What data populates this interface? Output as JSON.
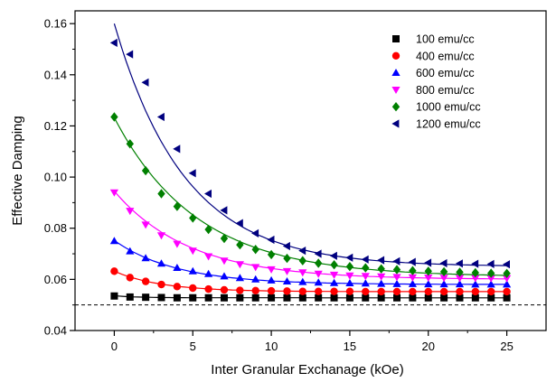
{
  "chart_data": {
    "type": "scatter",
    "title": "",
    "xlabel": "Inter Granular Exchanage (kOe)",
    "ylabel": "Effective Damping",
    "xlim": [
      -2.5,
      27.5
    ],
    "ylim": [
      0.04,
      0.165
    ],
    "xticks": [
      0,
      5,
      10,
      15,
      20,
      25
    ],
    "xtick_labels": [
      "0",
      "5",
      "10",
      "15",
      "20",
      "25"
    ],
    "yticks": [
      0.04,
      0.06,
      0.08,
      0.1,
      0.12,
      0.14,
      0.16
    ],
    "ytick_labels": [
      "0.04",
      "0.06",
      "0.08",
      "0.10",
      "0.12",
      "0.14",
      "0.16"
    ],
    "grid": false,
    "legend_position": "top-right",
    "x": [
      0,
      1,
      2,
      3,
      4,
      5,
      6,
      7,
      8,
      9,
      10,
      11,
      12,
      13,
      14,
      15,
      16,
      17,
      18,
      19,
      20,
      21,
      22,
      23,
      24,
      25
    ],
    "series": [
      {
        "name": "100 emu/cc",
        "color": "#000000",
        "marker": "square",
        "values": [
          0.0535,
          0.0531,
          0.053,
          0.0529,
          0.0528,
          0.0528,
          0.0528,
          0.0528,
          0.0528,
          0.0528,
          0.0528,
          0.0528,
          0.0528,
          0.0528,
          0.0528,
          0.0528,
          0.0528,
          0.0528,
          0.0528,
          0.0528,
          0.0528,
          0.0528,
          0.0528,
          0.0528,
          0.0528,
          0.0528
        ],
        "fit": {
          "a": 0.0528,
          "b": 0.0008,
          "tau": 1.5
        }
      },
      {
        "name": "400 emu/cc",
        "color": "#ff0000",
        "marker": "circle",
        "values": [
          0.0632,
          0.0607,
          0.0592,
          0.058,
          0.0572,
          0.0566,
          0.0562,
          0.0559,
          0.0557,
          0.0556,
          0.0555,
          0.0554,
          0.0553,
          0.0553,
          0.0553,
          0.0553,
          0.0552,
          0.0552,
          0.0552,
          0.0552,
          0.0552,
          0.0552,
          0.0552,
          0.0552,
          0.0552,
          0.0552
        ],
        "fit": {
          "a": 0.0552,
          "b": 0.008,
          "tau": 3.0
        }
      },
      {
        "name": "600 emu/cc",
        "color": "#0000ff",
        "marker": "triangle-up",
        "values": [
          0.075,
          0.071,
          0.0683,
          0.0662,
          0.0645,
          0.0632,
          0.0621,
          0.0612,
          0.0605,
          0.06,
          0.0596,
          0.0592,
          0.059,
          0.0588,
          0.0586,
          0.0585,
          0.0584,
          0.0583,
          0.0582,
          0.0582,
          0.0581,
          0.0581,
          0.0581,
          0.058,
          0.058,
          0.058
        ],
        "fit": {
          "a": 0.058,
          "b": 0.0172,
          "tau": 4.0
        }
      },
      {
        "name": "800 emu/cc",
        "color": "#ff00ff",
        "marker": "triangle-down",
        "values": [
          0.094,
          0.0868,
          0.0814,
          0.0772,
          0.0739,
          0.0712,
          0.069,
          0.0673,
          0.0659,
          0.0648,
          0.0639,
          0.0632,
          0.0627,
          0.0622,
          0.0618,
          0.0615,
          0.0613,
          0.0611,
          0.0609,
          0.0608,
          0.0607,
          0.0606,
          0.0605,
          0.0605,
          0.0604,
          0.0604
        ],
        "fit": {
          "a": 0.06,
          "b": 0.0345,
          "tau": 4.8
        }
      },
      {
        "name": "1000 emu/cc",
        "color": "#008000",
        "marker": "diamond",
        "values": [
          0.1235,
          0.113,
          0.1025,
          0.0935,
          0.0885,
          0.084,
          0.0795,
          0.076,
          0.0735,
          0.0717,
          0.0697,
          0.0682,
          0.0673,
          0.0663,
          0.0657,
          0.065,
          0.0645,
          0.0641,
          0.0638,
          0.0634,
          0.0632,
          0.063,
          0.0628,
          0.0626,
          0.0624,
          0.0623
        ],
        "fit": {
          "a": 0.061,
          "b": 0.0622,
          "tau": 5.3
        }
      },
      {
        "name": "1200 emu/cc",
        "color": "#00007f",
        "marker": "triangle-left",
        "values": [
          0.1525,
          0.148,
          0.137,
          0.1235,
          0.111,
          0.1015,
          0.0935,
          0.087,
          0.082,
          0.078,
          0.0755,
          0.073,
          0.0712,
          0.07,
          0.0692,
          0.0685,
          0.0678,
          0.0675,
          0.0671,
          0.0668,
          0.0665,
          0.0663,
          0.0662,
          0.0661,
          0.066,
          0.0659
        ],
        "fit": {
          "a": 0.065,
          "b": 0.095,
          "tau": 4.5
        }
      }
    ],
    "reference_line": {
      "y": 0.05,
      "style": "dashed",
      "color": "#000000"
    }
  }
}
